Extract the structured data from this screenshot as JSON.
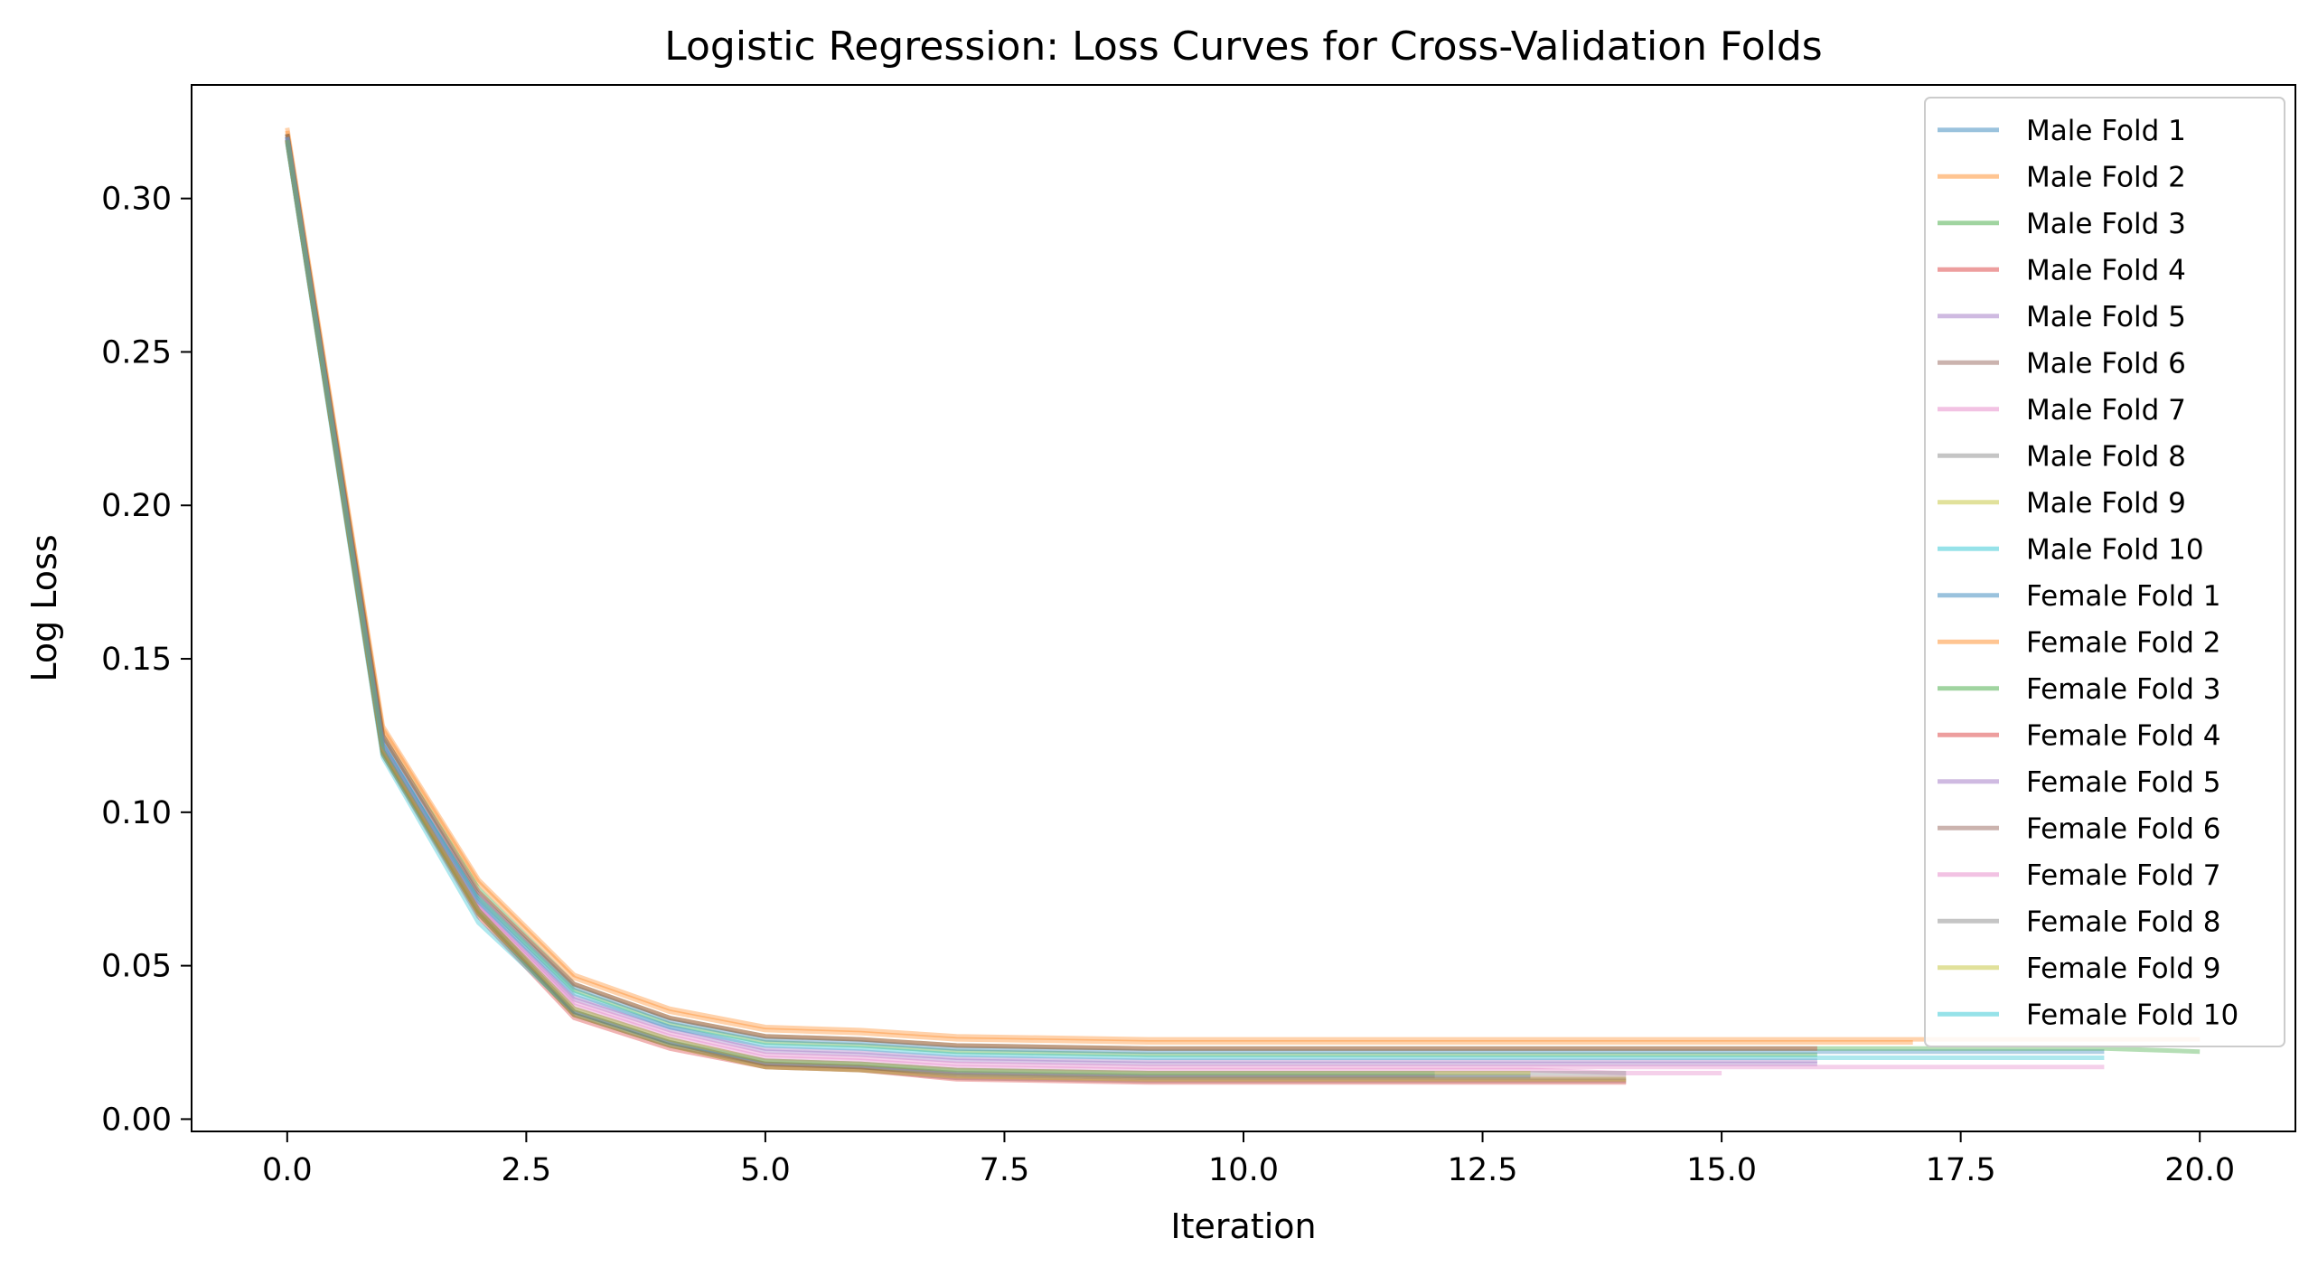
{
  "chart_data": {
    "type": "line",
    "title": "Logistic Regression: Loss Curves for Cross-Validation Folds",
    "xlabel": "Iteration",
    "ylabel": "Log Loss",
    "xlim": [
      -1.0,
      21.0
    ],
    "ylim": [
      -0.004,
      0.337
    ],
    "xticks": [
      0.0,
      2.5,
      5.0,
      7.5,
      10.0,
      12.5,
      15.0,
      17.5,
      20.0
    ],
    "xtick_labels": [
      "0.0",
      "2.5",
      "5.0",
      "7.5",
      "10.0",
      "12.5",
      "15.0",
      "17.5",
      "20.0"
    ],
    "yticks": [
      0.0,
      0.05,
      0.1,
      0.15,
      0.2,
      0.25,
      0.3
    ],
    "ytick_labels": [
      "0.00",
      "0.05",
      "0.10",
      "0.15",
      "0.20",
      "0.25",
      "0.30"
    ],
    "grid": false,
    "legend_position": "top-right",
    "line_alpha": 0.35,
    "series": [
      {
        "name": "Male Fold 1",
        "color": "#1f77b4",
        "x": [
          0,
          1,
          2,
          3,
          4,
          5,
          6,
          7,
          8,
          9,
          10,
          11,
          12,
          13
        ],
        "y": [
          0.319,
          0.119,
          0.067,
          0.034,
          0.024,
          0.018,
          0.017,
          0.015,
          0.0145,
          0.014,
          0.014,
          0.014,
          0.014,
          0.014
        ]
      },
      {
        "name": "Male Fold 2",
        "color": "#ff7f0e",
        "x": [
          0,
          1,
          2,
          3,
          4,
          5,
          6,
          7,
          8,
          9,
          10,
          11,
          12,
          13,
          14,
          15,
          16,
          17,
          18,
          19,
          20
        ],
        "y": [
          0.323,
          0.128,
          0.078,
          0.047,
          0.036,
          0.03,
          0.029,
          0.027,
          0.0265,
          0.026,
          0.026,
          0.026,
          0.026,
          0.026,
          0.026,
          0.026,
          0.026,
          0.026,
          0.026,
          0.026,
          0.026
        ]
      },
      {
        "name": "Male Fold 3",
        "color": "#2ca02c",
        "x": [
          0,
          1,
          2,
          3,
          4,
          5,
          6,
          7,
          8,
          9,
          10,
          11,
          12,
          13,
          14,
          15,
          16
        ],
        "y": [
          0.32,
          0.121,
          0.072,
          0.042,
          0.031,
          0.025,
          0.024,
          0.022,
          0.0215,
          0.021,
          0.021,
          0.021,
          0.021,
          0.021,
          0.021,
          0.021,
          0.021
        ]
      },
      {
        "name": "Male Fold 4",
        "color": "#d62728",
        "x": [
          0,
          1,
          2,
          3,
          4,
          5,
          6,
          7,
          8,
          9,
          10,
          11,
          12,
          13,
          14
        ],
        "y": [
          0.319,
          0.119,
          0.066,
          0.033,
          0.023,
          0.017,
          0.016,
          0.013,
          0.0125,
          0.012,
          0.012,
          0.012,
          0.012,
          0.012,
          0.012
        ]
      },
      {
        "name": "Male Fold 5",
        "color": "#9467bd",
        "x": [
          0,
          1,
          2,
          3,
          4,
          5,
          6,
          7,
          8,
          9,
          10,
          11,
          12,
          13,
          14,
          15,
          16
        ],
        "y": [
          0.32,
          0.122,
          0.07,
          0.039,
          0.029,
          0.022,
          0.021,
          0.019,
          0.0185,
          0.018,
          0.018,
          0.018,
          0.018,
          0.018,
          0.018,
          0.018,
          0.018
        ]
      },
      {
        "name": "Male Fold 6",
        "color": "#8c564b",
        "x": [
          0,
          1,
          2,
          3,
          4,
          5,
          6,
          7,
          8,
          9,
          10,
          11,
          12,
          13,
          14
        ],
        "y": [
          0.319,
          0.12,
          0.067,
          0.034,
          0.024,
          0.017,
          0.016,
          0.0135,
          0.013,
          0.0125,
          0.0125,
          0.0125,
          0.0125,
          0.0125,
          0.0125
        ]
      },
      {
        "name": "Male Fold 7",
        "color": "#e377c2",
        "x": [
          0,
          1,
          2,
          3,
          4,
          5,
          6,
          7,
          8,
          9,
          10,
          11,
          12,
          13,
          14,
          15,
          16,
          17,
          18,
          19
        ],
        "y": [
          0.32,
          0.121,
          0.069,
          0.038,
          0.028,
          0.021,
          0.02,
          0.018,
          0.0175,
          0.017,
          0.017,
          0.017,
          0.017,
          0.017,
          0.017,
          0.017,
          0.017,
          0.017,
          0.017,
          0.017
        ]
      },
      {
        "name": "Male Fold 8",
        "color": "#7f7f7f",
        "x": [
          0,
          1,
          2,
          3,
          4,
          5,
          6,
          7,
          8,
          9,
          10,
          11,
          12
        ],
        "y": [
          0.319,
          0.12,
          0.068,
          0.035,
          0.025,
          0.018,
          0.017,
          0.015,
          0.0145,
          0.014,
          0.014,
          0.014,
          0.014
        ]
      },
      {
        "name": "Male Fold 9",
        "color": "#bcbd22",
        "x": [
          0,
          1,
          2,
          3,
          4,
          5,
          6,
          7,
          8,
          9,
          10,
          11,
          12,
          13,
          14
        ],
        "y": [
          0.319,
          0.119,
          0.067,
          0.034,
          0.024,
          0.017,
          0.016,
          0.014,
          0.0135,
          0.013,
          0.013,
          0.013,
          0.013,
          0.013,
          0.013
        ]
      },
      {
        "name": "Male Fold 10",
        "color": "#17becf",
        "x": [
          0,
          1,
          2,
          3,
          4,
          5,
          6,
          7,
          8,
          9,
          10,
          11,
          12
        ],
        "y": [
          0.318,
          0.118,
          0.064,
          0.035,
          0.025,
          0.019,
          0.018,
          0.016,
          0.0155,
          0.015,
          0.015,
          0.015,
          0.015
        ]
      },
      {
        "name": "Female Fold 1",
        "color": "#1f77b4",
        "x": [
          0,
          1,
          2,
          3,
          4,
          5,
          6,
          7,
          8,
          9,
          10,
          11,
          12,
          13,
          14,
          15,
          16,
          17,
          18,
          19
        ],
        "y": [
          0.321,
          0.124,
          0.073,
          0.043,
          0.032,
          0.026,
          0.025,
          0.023,
          0.0225,
          0.022,
          0.022,
          0.022,
          0.022,
          0.022,
          0.022,
          0.022,
          0.022,
          0.022,
          0.022,
          0.022
        ]
      },
      {
        "name": "Female Fold 2",
        "color": "#ff7f0e",
        "x": [
          0,
          1,
          2,
          3,
          4,
          5,
          6,
          7,
          8,
          9,
          10,
          11,
          12,
          13,
          14,
          15,
          16,
          17
        ],
        "y": [
          0.322,
          0.127,
          0.077,
          0.046,
          0.035,
          0.029,
          0.028,
          0.026,
          0.0255,
          0.025,
          0.025,
          0.025,
          0.025,
          0.025,
          0.025,
          0.025,
          0.025,
          0.025
        ]
      },
      {
        "name": "Female Fold 3",
        "color": "#2ca02c",
        "x": [
          0,
          1,
          2,
          3,
          4,
          5,
          6,
          7,
          8,
          9,
          10,
          11,
          12,
          13,
          14,
          15,
          16,
          17,
          18,
          19,
          20
        ],
        "y": [
          0.321,
          0.125,
          0.075,
          0.044,
          0.033,
          0.027,
          0.026,
          0.024,
          0.0235,
          0.023,
          0.023,
          0.023,
          0.023,
          0.023,
          0.023,
          0.023,
          0.023,
          0.023,
          0.023,
          0.023,
          0.022
        ]
      },
      {
        "name": "Female Fold 4",
        "color": "#d62728",
        "x": [
          0,
          1,
          2,
          3,
          4,
          5,
          6,
          7,
          8,
          9,
          10,
          11,
          12,
          13,
          14,
          15,
          16
        ],
        "y": [
          0.321,
          0.125,
          0.074,
          0.044,
          0.033,
          0.027,
          0.026,
          0.024,
          0.0235,
          0.023,
          0.023,
          0.023,
          0.023,
          0.023,
          0.023,
          0.023,
          0.023
        ]
      },
      {
        "name": "Female Fold 5",
        "color": "#9467bd",
        "x": [
          0,
          1,
          2,
          3,
          4,
          5,
          6,
          7,
          8,
          9,
          10,
          11,
          12,
          13,
          14,
          15,
          16
        ],
        "y": [
          0.32,
          0.122,
          0.071,
          0.04,
          0.03,
          0.023,
          0.022,
          0.02,
          0.0195,
          0.019,
          0.019,
          0.019,
          0.019,
          0.019,
          0.019,
          0.019,
          0.019
        ]
      },
      {
        "name": "Female Fold 6",
        "color": "#8c564b",
        "x": [
          0,
          1,
          2,
          3,
          4,
          5,
          6,
          7,
          8,
          9,
          10,
          11,
          12,
          13,
          14
        ],
        "y": [
          0.319,
          0.12,
          0.068,
          0.035,
          0.025,
          0.018,
          0.017,
          0.0145,
          0.014,
          0.0135,
          0.0135,
          0.0135,
          0.0135,
          0.0135,
          0.0135
        ]
      },
      {
        "name": "Female Fold 7",
        "color": "#e377c2",
        "x": [
          0,
          1,
          2,
          3,
          4,
          5,
          6,
          7,
          8,
          9,
          10,
          11,
          12,
          13,
          14,
          15
        ],
        "y": [
          0.32,
          0.121,
          0.069,
          0.037,
          0.027,
          0.02,
          0.019,
          0.017,
          0.0165,
          0.016,
          0.016,
          0.016,
          0.016,
          0.016,
          0.015,
          0.015
        ]
      },
      {
        "name": "Female Fold 8",
        "color": "#7f7f7f",
        "x": [
          0,
          1,
          2,
          3,
          4,
          5,
          6,
          7,
          8,
          9,
          10,
          11,
          12,
          13,
          14
        ],
        "y": [
          0.319,
          0.12,
          0.068,
          0.036,
          0.026,
          0.019,
          0.018,
          0.016,
          0.0155,
          0.015,
          0.015,
          0.015,
          0.015,
          0.015,
          0.015
        ]
      },
      {
        "name": "Female Fold 9",
        "color": "#bcbd22",
        "x": [
          0,
          1,
          2,
          3,
          4,
          5,
          6,
          7,
          8,
          9,
          10,
          11,
          12,
          13
        ],
        "y": [
          0.319,
          0.12,
          0.068,
          0.036,
          0.026,
          0.019,
          0.018,
          0.016,
          0.0155,
          0.015,
          0.015,
          0.015,
          0.015,
          0.015
        ]
      },
      {
        "name": "Female Fold 10",
        "color": "#17becf",
        "x": [
          0,
          1,
          2,
          3,
          4,
          5,
          6,
          7,
          8,
          9,
          10,
          11,
          12,
          13,
          14,
          15,
          16,
          17,
          18,
          19
        ],
        "y": [
          0.32,
          0.122,
          0.071,
          0.041,
          0.03,
          0.024,
          0.023,
          0.021,
          0.0205,
          0.02,
          0.02,
          0.02,
          0.02,
          0.02,
          0.02,
          0.02,
          0.02,
          0.02,
          0.02,
          0.02
        ]
      }
    ]
  }
}
